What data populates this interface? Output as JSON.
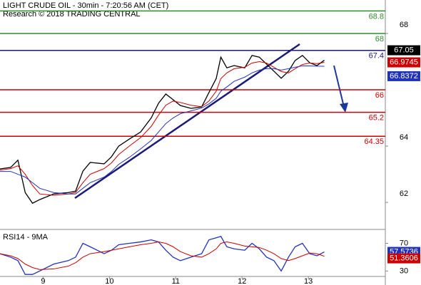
{
  "chart_data": [
    {
      "type": "line",
      "title": "LIGHT CRUDE OIL - 30min - 7:20:56 AM (CET)",
      "subtitle": "Research © 2018 TRADING CENTRAL",
      "x": [
        8.35,
        8.51,
        8.62,
        8.73,
        8.84,
        8.95,
        9.16,
        9.38,
        9.49,
        9.6,
        9.71,
        9.92,
        10.03,
        10.14,
        10.3,
        10.47,
        10.63,
        10.74,
        10.85,
        10.96,
        11.07,
        11.23,
        11.39,
        11.5,
        11.61,
        11.68,
        11.77,
        11.88,
        12.04,
        12.15,
        12.26,
        12.37,
        12.48,
        12.59,
        12.7,
        12.8,
        12.91,
        13.02,
        13.13,
        13.24
      ],
      "series": [
        {
          "color": "#000000",
          "values": [
            63.19,
            63.24,
            63.5,
            62.35,
            61.97,
            62.1,
            62.3,
            62.35,
            62.4,
            63.11,
            63.42,
            63.37,
            63.62,
            64.0,
            64.25,
            64.5,
            65.0,
            65.52,
            65.85,
            65.65,
            65.44,
            65.34,
            65.39,
            65.9,
            66.4,
            67.16,
            66.78,
            66.86,
            66.78,
            67.22,
            67.16,
            66.91,
            66.66,
            66.41,
            66.66,
            67.04,
            67.22,
            66.96,
            66.86,
            67.05
          ]
        },
        {
          "color": "#cc0000",
          "values": [
            63.15,
            63.2,
            63.3,
            63.0,
            62.6,
            62.3,
            62.25,
            62.3,
            62.35,
            62.7,
            63.0,
            63.2,
            63.4,
            63.7,
            64.0,
            64.3,
            64.7,
            65.1,
            65.45,
            65.6,
            65.55,
            65.45,
            65.4,
            65.6,
            65.95,
            66.4,
            66.6,
            66.75,
            66.8,
            66.95,
            67.0,
            66.95,
            66.8,
            66.65,
            66.6,
            66.75,
            66.9,
            66.95,
            66.93,
            66.9745
          ]
        },
        {
          "color": "#2233bb",
          "values": [
            63.1,
            63.1,
            63.0,
            62.9,
            62.7,
            62.5,
            62.35,
            62.3,
            62.3,
            62.5,
            62.7,
            62.9,
            63.1,
            63.35,
            63.6,
            63.9,
            64.2,
            64.5,
            64.8,
            65.0,
            65.15,
            65.25,
            65.35,
            65.5,
            65.7,
            65.95,
            66.1,
            66.3,
            66.45,
            66.6,
            66.7,
            66.75,
            66.75,
            66.7,
            66.75,
            66.8,
            66.85,
            66.85,
            66.84,
            66.8372
          ]
        }
      ],
      "levels": [
        {
          "value": 68.8,
          "color": "#2e8b2e"
        },
        {
          "value": 68,
          "color": "#2e8b2e"
        },
        {
          "value": 67.4,
          "color": "#1a1a7a"
        },
        {
          "value": 66,
          "color": "#cc0000"
        },
        {
          "value": 65.2,
          "color": "#cc0000"
        },
        {
          "value": 64.35,
          "color": "#cc0000"
        }
      ],
      "xlim": [
        8.35,
        14.16
      ],
      "xticks": [
        9,
        10,
        11,
        12,
        13
      ],
      "ylim": [
        61.09,
        69.19
      ],
      "yticks": [
        62,
        64,
        68
      ]
    },
    {
      "type": "line",
      "title": "RSI14 - 9MA",
      "series": [
        {
          "color": "#2233bb",
          "values": [
            55,
            50,
            45,
            25,
            25,
            30,
            40,
            45,
            50,
            70,
            65,
            55,
            60,
            68,
            70,
            72,
            75,
            72,
            60,
            50,
            45,
            50,
            55,
            75,
            78,
            80,
            65,
            62,
            60,
            70,
            62,
            50,
            45,
            30,
            50,
            65,
            70,
            55,
            52,
            57.5736
          ]
        },
        {
          "color": "#cc0000",
          "values": [
            55,
            52,
            48,
            40,
            35,
            32,
            33,
            37,
            42,
            50,
            55,
            58,
            60,
            62,
            65,
            68,
            70,
            72,
            70,
            65,
            58,
            52,
            50,
            55,
            62,
            70,
            72,
            70,
            66,
            65,
            64,
            60,
            55,
            48,
            45,
            48,
            52,
            56,
            55,
            51.3606
          ]
        }
      ],
      "ylim": [
        18,
        87
      ],
      "yticks": [
        30,
        70
      ]
    }
  ]
}
